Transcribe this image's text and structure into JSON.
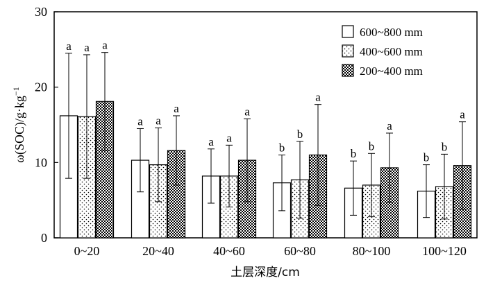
{
  "chart_data": {
    "type": "bar",
    "categories": [
      "0~20",
      "20~40",
      "40~60",
      "60~80",
      "80~100",
      "100~120"
    ],
    "series": [
      {
        "name": "600~800 mm",
        "pattern": "white",
        "values": [
          16.2,
          10.3,
          8.2,
          7.3,
          6.6,
          6.2
        ],
        "errors": [
          8.3,
          4.2,
          3.6,
          3.7,
          3.6,
          3.5
        ],
        "letters": [
          "a",
          "a",
          "a",
          "b",
          "b",
          "b"
        ]
      },
      {
        "name": "400~600 mm",
        "pattern": "dots",
        "values": [
          16.1,
          9.7,
          8.2,
          7.7,
          7.0,
          6.8
        ],
        "errors": [
          8.2,
          4.9,
          4.1,
          5.1,
          4.2,
          4.3
        ],
        "letters": [
          "a",
          "a",
          "a",
          "b",
          "b",
          "b"
        ]
      },
      {
        "name": "200~400 mm",
        "pattern": "checker",
        "values": [
          18.1,
          11.6,
          10.3,
          11.0,
          9.3,
          9.6
        ],
        "errors": [
          6.5,
          4.6,
          5.5,
          6.7,
          4.6,
          5.8
        ],
        "letters": [
          "a",
          "a",
          "a",
          "a",
          "a",
          "a"
        ]
      }
    ],
    "ylim": [
      0,
      30
    ],
    "yticks": [
      "0",
      "10",
      "20",
      "30"
    ],
    "ylabel": "ω(SOC)/g·kg",
    "ylabel_sup": "−1",
    "xlabel": "土层深度/cm",
    "legend_position": "top-right",
    "colors": {
      "bar_stroke": "#000000",
      "bar_fill": "#ffffff",
      "pattern_ink": "#000000"
    }
  }
}
